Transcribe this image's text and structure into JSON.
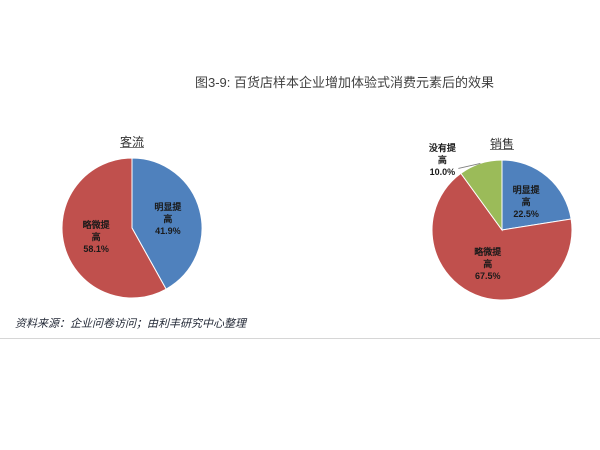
{
  "title": "图3-9: 百货店样本企业增加体验式消费元素后的效果",
  "source_note": "资料来源：企业问卷访问；由利丰研究中心整理",
  "chart_data": [
    {
      "type": "pie",
      "title": "客流",
      "slices": [
        {
          "label": "明显提高",
          "value": 41.9,
          "value_label": "41.9%",
          "color": "#4F81BD"
        },
        {
          "label": "略微提高",
          "value": 58.1,
          "value_label": "58.1%",
          "color": "#C0504D"
        }
      ]
    },
    {
      "type": "pie",
      "title": "销售",
      "slices": [
        {
          "label": "明显提高",
          "value": 22.5,
          "value_label": "22.5%",
          "color": "#4F81BD"
        },
        {
          "label": "略微提高",
          "value": 67.5,
          "value_label": "67.5%",
          "color": "#C0504D"
        },
        {
          "label": "没有提高",
          "value": 10.0,
          "value_label": "10.0%",
          "color": "#9BBB59"
        }
      ]
    }
  ]
}
